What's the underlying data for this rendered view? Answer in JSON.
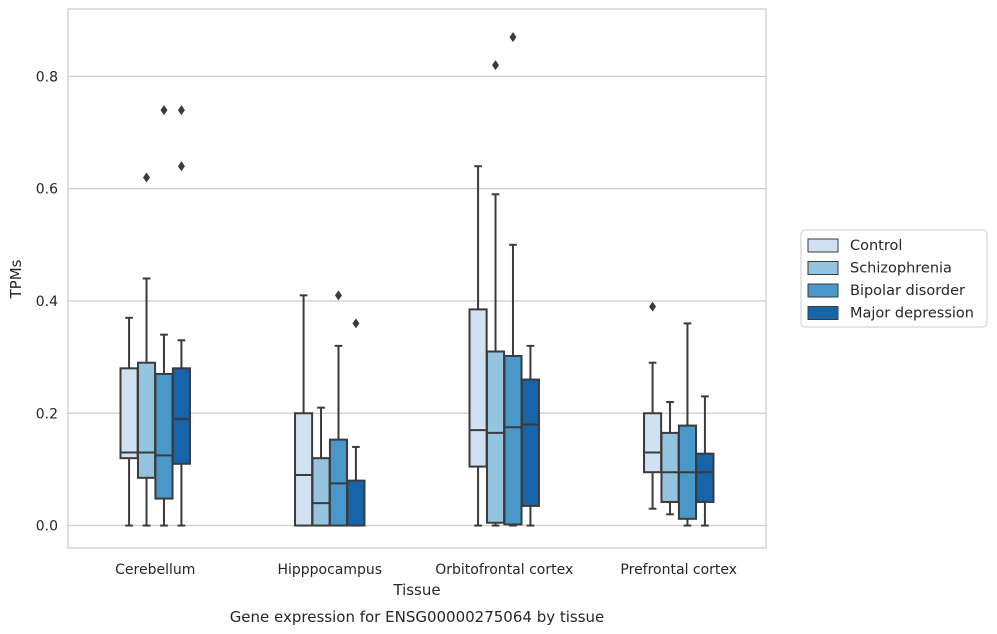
{
  "chart_data": {
    "type": "box",
    "caption": "Gene expression for ENSG00000275064 by tissue",
    "xlabel": "Tissue",
    "ylabel": "TPMs",
    "ylim": [
      -0.04,
      0.92
    ],
    "yticks": [
      0.0,
      0.2,
      0.4,
      0.6,
      0.8
    ],
    "ytick_labels": [
      "0.0",
      "0.2",
      "0.4",
      "0.6",
      "0.8"
    ],
    "grid": "horizontal",
    "legend_position": "right",
    "categories": [
      "Cerebellum",
      "Hipppocampus",
      "Orbitofrontal cortex",
      "Prefrontal cortex"
    ],
    "series": [
      {
        "name": "Control",
        "color": "#d0e1f2",
        "boxes": [
          {
            "whislo": 0.0,
            "q1": 0.12,
            "med": 0.13,
            "q3": 0.28,
            "whishi": 0.37,
            "fliers": []
          },
          {
            "whislo": 0.0,
            "q1": 0.0,
            "med": 0.09,
            "q3": 0.2,
            "whishi": 0.41,
            "fliers": []
          },
          {
            "whislo": 0.0,
            "q1": 0.105,
            "med": 0.17,
            "q3": 0.385,
            "whishi": 0.64,
            "fliers": []
          },
          {
            "whislo": 0.03,
            "q1": 0.095,
            "med": 0.13,
            "q3": 0.2,
            "whishi": 0.29,
            "fliers": [
              0.39
            ]
          }
        ]
      },
      {
        "name": "Schizophrenia",
        "color": "#94c4df",
        "boxes": [
          {
            "whislo": 0.0,
            "q1": 0.085,
            "med": 0.13,
            "q3": 0.29,
            "whishi": 0.44,
            "fliers": [
              0.62
            ]
          },
          {
            "whislo": 0.0,
            "q1": 0.0,
            "med": 0.04,
            "q3": 0.12,
            "whishi": 0.21,
            "fliers": []
          },
          {
            "whislo": 0.0,
            "q1": 0.005,
            "med": 0.165,
            "q3": 0.31,
            "whishi": 0.59,
            "fliers": [
              0.82
            ]
          },
          {
            "whislo": 0.02,
            "q1": 0.042,
            "med": 0.095,
            "q3": 0.165,
            "whishi": 0.22,
            "fliers": []
          }
        ]
      },
      {
        "name": "Bipolar disorder",
        "color": "#4a98c9",
        "boxes": [
          {
            "whislo": 0.0,
            "q1": 0.048,
            "med": 0.125,
            "q3": 0.27,
            "whishi": 0.34,
            "fliers": [
              0.74
            ]
          },
          {
            "whislo": 0.0,
            "q1": 0.0,
            "med": 0.075,
            "q3": 0.153,
            "whishi": 0.32,
            "fliers": [
              0.41
            ]
          },
          {
            "whislo": 0.0,
            "q1": 0.002,
            "med": 0.175,
            "q3": 0.302,
            "whishi": 0.5,
            "fliers": [
              0.87
            ]
          },
          {
            "whislo": 0.0,
            "q1": 0.012,
            "med": 0.095,
            "q3": 0.178,
            "whishi": 0.36,
            "fliers": []
          }
        ]
      },
      {
        "name": "Major depression",
        "color": "#1764ab",
        "boxes": [
          {
            "whislo": 0.0,
            "q1": 0.11,
            "med": 0.19,
            "q3": 0.28,
            "whishi": 0.33,
            "fliers": [
              0.64,
              0.74
            ]
          },
          {
            "whislo": 0.0,
            "q1": 0.0,
            "med": 0.0,
            "q3": 0.08,
            "whishi": 0.14,
            "fliers": [
              0.36
            ]
          },
          {
            "whislo": 0.0,
            "q1": 0.035,
            "med": 0.18,
            "q3": 0.26,
            "whishi": 0.32,
            "fliers": []
          },
          {
            "whislo": 0.0,
            "q1": 0.042,
            "med": 0.095,
            "q3": 0.128,
            "whishi": 0.23,
            "fliers": []
          }
        ]
      }
    ]
  }
}
